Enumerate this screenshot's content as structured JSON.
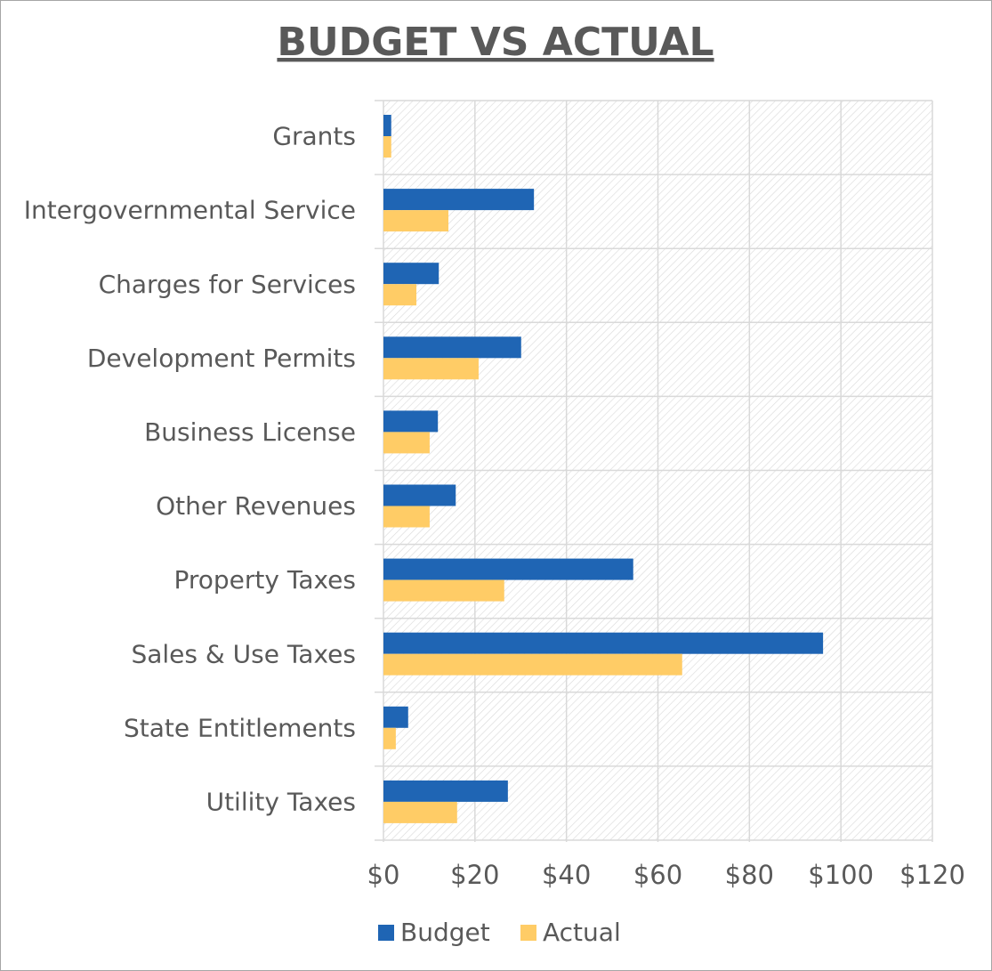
{
  "chart_data": {
    "type": "hbar",
    "title": "BUDGET VS ACTUAL",
    "categories": [
      "Grants",
      "Intergovernmental Service",
      "Charges for Services",
      "Development Permits",
      "Business License",
      "Other Revenues",
      "Property Taxes",
      "Sales & Use Taxes",
      "State Entitlements",
      "Utility Taxes"
    ],
    "series": [
      {
        "name": "Budget",
        "color": "#1f65b4",
        "values": [
          1.7,
          32.9,
          12.1,
          30.1,
          11.9,
          15.8,
          54.6,
          96.1,
          5.4,
          27.2
        ]
      },
      {
        "name": "Actual",
        "color": "#ffcc66",
        "values": [
          1.7,
          14.2,
          7.2,
          20.8,
          10.1,
          10.1,
          26.4,
          65.3,
          2.7,
          16.1
        ]
      }
    ],
    "xlim": [
      0,
      120
    ],
    "xticks": [
      {
        "value": 0,
        "label": "$0"
      },
      {
        "value": 20,
        "label": "$20"
      },
      {
        "value": 40,
        "label": "$40"
      },
      {
        "value": 60,
        "label": "$60"
      },
      {
        "value": 80,
        "label": "$80"
      },
      {
        "value": 100,
        "label": "$100"
      },
      {
        "value": 120,
        "label": "$120"
      }
    ],
    "grid": true,
    "legend": "bottom"
  }
}
